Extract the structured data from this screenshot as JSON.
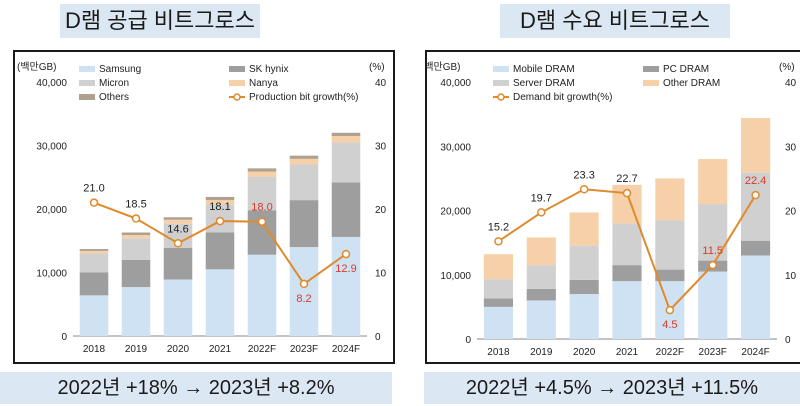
{
  "left_title": "D램 공급 비트그로스",
  "right_title": "D램 수요 비트그로스",
  "left_bottom": "2022년 +18% → 2023년 +8.2%",
  "right_bottom": "2022년 +4.5% → 2023년 +11.5%",
  "colors": {
    "title_bg": "#dbe8f4",
    "line": "#e08a2c",
    "highlight_label": "#d83a2a"
  },
  "chart_data": [
    {
      "type": "bar",
      "stacked": true,
      "title": "D램 공급 비트그로스",
      "ylabel_left": "(백만GB)",
      "ylabel_right": "(%)",
      "ylim": [
        0,
        40000
      ],
      "y2lim": [
        0,
        40
      ],
      "yticks": [
        "40,000",
        "30,000",
        "20,000",
        "10,000",
        "0"
      ],
      "y2ticks": [
        "40",
        "30",
        "20",
        "10",
        "0"
      ],
      "categories": [
        "2018",
        "2019",
        "2020",
        "2021",
        "2022F",
        "2023F",
        "2024F"
      ],
      "series": [
        {
          "name": "Samsung",
          "color": "#cfe2f3",
          "values": [
            6400,
            7700,
            8900,
            10500,
            12800,
            14000,
            15600
          ]
        },
        {
          "name": "SK hynix",
          "color": "#9e9e9e",
          "values": [
            3600,
            4300,
            5000,
            5800,
            7000,
            7400,
            8600
          ]
        },
        {
          "name": "Micron",
          "color": "#d0d0d0",
          "values": [
            3000,
            3400,
            3800,
            4400,
            5300,
            5600,
            6300
          ]
        },
        {
          "name": "Nanya",
          "color": "#f5d0a9",
          "values": [
            400,
            500,
            600,
            700,
            800,
            900,
            1000
          ]
        },
        {
          "name": "Others",
          "color": "#b0a090",
          "values": [
            300,
            400,
            400,
            500,
            500,
            500,
            500
          ]
        }
      ],
      "line": {
        "name": "Production bit growth(%)",
        "values": [
          21.0,
          18.5,
          14.6,
          18.1,
          18.0,
          8.2,
          12.9
        ]
      },
      "line_labels": [
        "21.0",
        "18.5",
        "14.6",
        "18.1",
        "18.0",
        "8.2",
        "12.9"
      ],
      "highlight_labels": [
        "18.0",
        "8.2",
        "12.9"
      ]
    },
    {
      "type": "bar",
      "stacked": true,
      "title": "D램 수요 비트그로스",
      "ylabel_left": "(백만GB)",
      "ylabel_right": "(%)",
      "ylim": [
        0,
        40000
      ],
      "y2lim": [
        0,
        40
      ],
      "yticks": [
        "40,000",
        "30,000",
        "20,000",
        "10,000",
        "0"
      ],
      "y2ticks": [
        "40",
        "30",
        "20",
        "10",
        "0"
      ],
      "categories": [
        "2018",
        "2019",
        "2020",
        "2021",
        "2022F",
        "2023F",
        "2024F"
      ],
      "series": [
        {
          "name": "Mobile DRAM",
          "color": "#cfe2f3",
          "values": [
            5000,
            6000,
            7000,
            9000,
            9000,
            10500,
            13000
          ]
        },
        {
          "name": "PC DRAM",
          "color": "#9e9e9e",
          "values": [
            1300,
            1800,
            2200,
            2500,
            1800,
            1700,
            2300
          ]
        },
        {
          "name": "Server DRAM",
          "color": "#d0d0d0",
          "values": [
            3000,
            3700,
            5300,
            6500,
            7700,
            8800,
            10600
          ]
        },
        {
          "name": "Other DRAM",
          "color": "#f5d0a9",
          "values": [
            3900,
            4300,
            5200,
            6000,
            6500,
            7000,
            8500
          ]
        }
      ],
      "line": {
        "name": "Demand bit growth(%)",
        "values": [
          15.2,
          19.7,
          23.3,
          22.7,
          4.5,
          11.5,
          22.4
        ]
      },
      "line_labels": [
        "15.2",
        "19.7",
        "23.3",
        "22.7",
        "4.5",
        "11.5",
        "22.4"
      ],
      "highlight_labels": [
        "4.5",
        "11.5",
        "22.4"
      ]
    }
  ]
}
